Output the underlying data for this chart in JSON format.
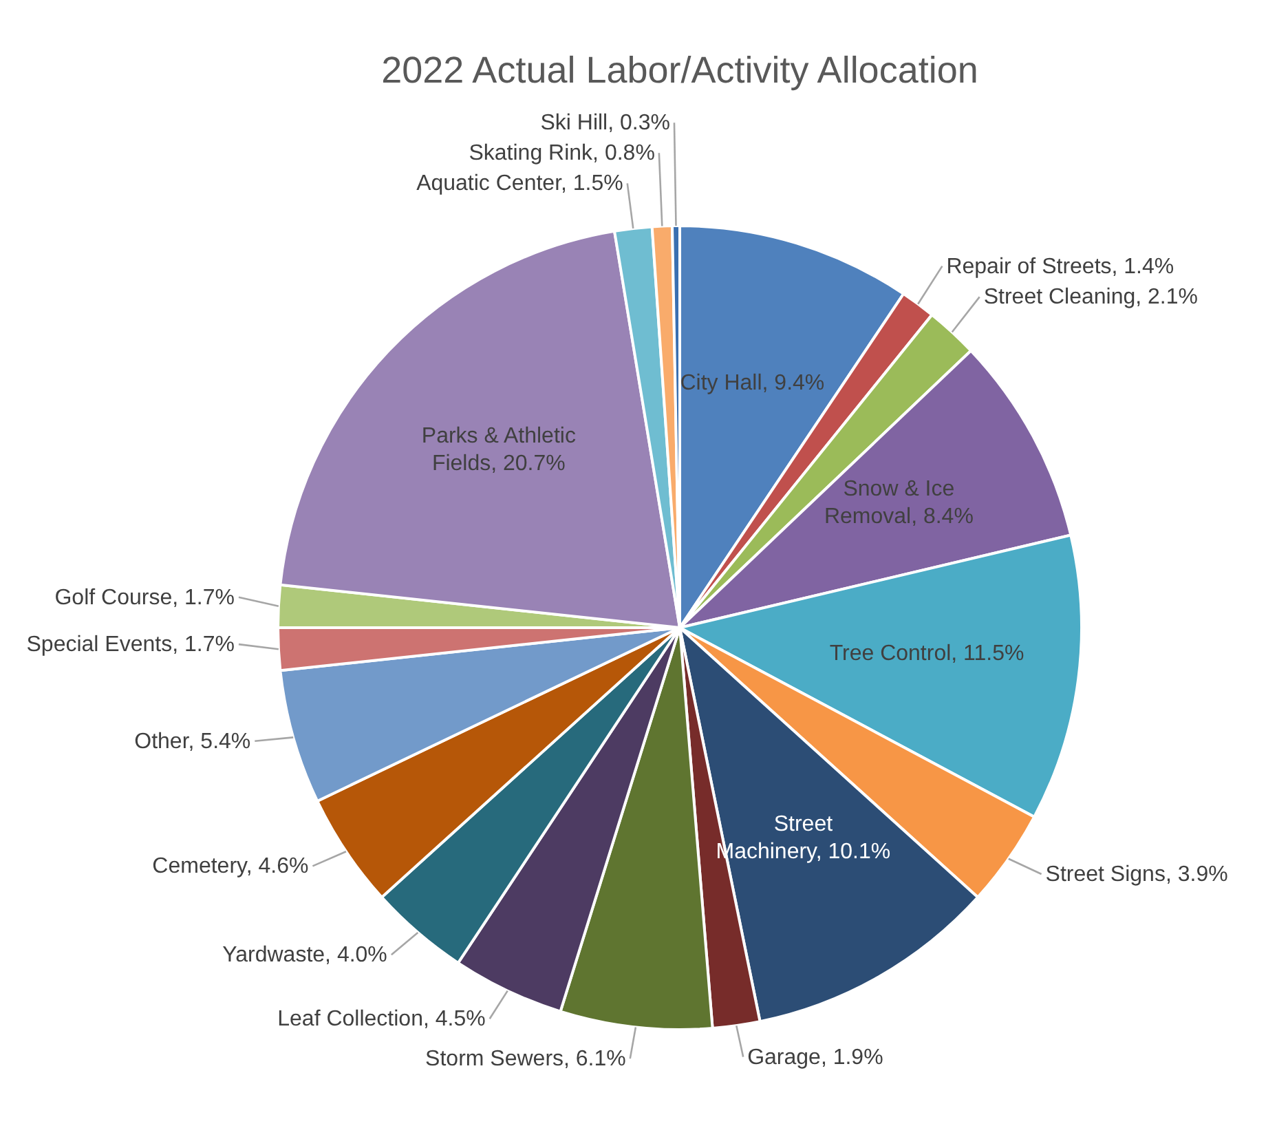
{
  "chart_data": {
    "type": "pie",
    "title": "2022 Actual Labor/Activity Allocation",
    "categories": [
      "City Hall",
      "Repair of Streets",
      "Street Cleaning",
      "Snow & Ice Removal",
      "Tree Control",
      "Street Signs",
      "Street Machinery",
      "Garage",
      "Storm Sewers",
      "Leaf Collection",
      "Yardwaste",
      "Cemetery",
      "Other",
      "Special Events",
      "Golf Course",
      "Parks & Athletic Fields",
      "Aquatic Center",
      "Skating Rink",
      "Ski Hill"
    ],
    "values": [
      9.4,
      1.4,
      2.1,
      8.4,
      11.5,
      3.9,
      10.1,
      1.9,
      6.1,
      4.5,
      4.0,
      4.6,
      5.4,
      1.7,
      1.7,
      20.7,
      1.5,
      0.8,
      0.3
    ],
    "value_labels": [
      "9.4%",
      "1.4%",
      "2.1%",
      "8.4%",
      "11.5%",
      "3.9%",
      "10.1%",
      "1.9%",
      "6.1%",
      "4.5%",
      "4.0%",
      "4.6%",
      "5.4%",
      "1.7%",
      "1.7%",
      "20.7%",
      "1.5%",
      "0.8%",
      "0.3%"
    ],
    "colors": [
      "#4f81bd",
      "#c0504d",
      "#9bbb59",
      "#8064a2",
      "#4bacc6",
      "#f79646",
      "#2c4d75",
      "#772c2a",
      "#5f7530",
      "#4d3b62",
      "#276a7c",
      "#b65708",
      "#729aca",
      "#cd7371",
      "#afc97a",
      "#9983b5",
      "#6fbdd1",
      "#f9ab6b",
      "#3a6fb0"
    ]
  }
}
